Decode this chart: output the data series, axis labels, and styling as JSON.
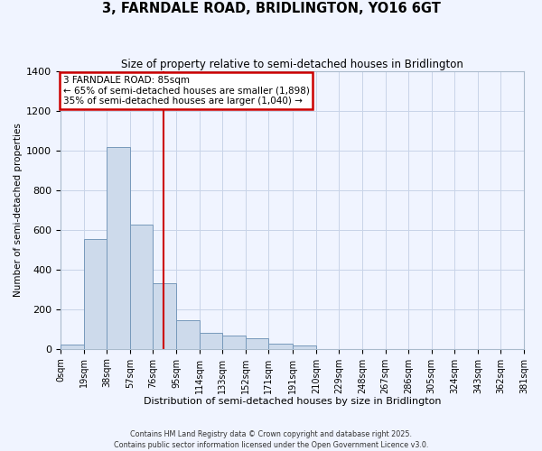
{
  "title": "3, FARNDALE ROAD, BRIDLINGTON, YO16 6GT",
  "subtitle": "Size of property relative to semi-detached houses in Bridlington",
  "xlabel": "Distribution of semi-detached houses by size in Bridlington",
  "ylabel": "Number of semi-detached properties",
  "bin_edges": [
    0,
    19,
    38,
    57,
    76,
    95,
    114,
    133,
    152,
    171,
    191,
    210,
    229,
    248,
    267,
    286,
    305,
    324,
    343,
    362,
    381
  ],
  "counts": [
    20,
    555,
    1020,
    625,
    330,
    145,
    80,
    65,
    55,
    25,
    15,
    0,
    0,
    0,
    0,
    0,
    0,
    0,
    0,
    0
  ],
  "bar_color": "#cddaeb",
  "bar_edge_color": "#7799bb",
  "property_size": 85,
  "vline_color": "#cc0000",
  "annotation_box_edge_color": "#cc0000",
  "annotation_line1": "3 FARNDALE ROAD: 85sqm",
  "annotation_line2": "← 65% of semi-detached houses are smaller (1,898)",
  "annotation_line3": "35% of semi-detached houses are larger (1,040) →",
  "ylim": [
    0,
    1400
  ],
  "yticks": [
    0,
    200,
    400,
    600,
    800,
    1000,
    1200,
    1400
  ],
  "tick_labels": [
    "0sqm",
    "19sqm",
    "38sqm",
    "57sqm",
    "76sqm",
    "95sqm",
    "114sqm",
    "133sqm",
    "152sqm",
    "171sqm",
    "191sqm",
    "210sqm",
    "229sqm",
    "248sqm",
    "267sqm",
    "286sqm",
    "305sqm",
    "324sqm",
    "343sqm",
    "362sqm",
    "381sqm"
  ],
  "footnote1": "Contains HM Land Registry data © Crown copyright and database right 2025.",
  "footnote2": "Contains public sector information licensed under the Open Government Licence v3.0.",
  "background_color": "#f0f4ff",
  "grid_color": "#c8d4e8"
}
